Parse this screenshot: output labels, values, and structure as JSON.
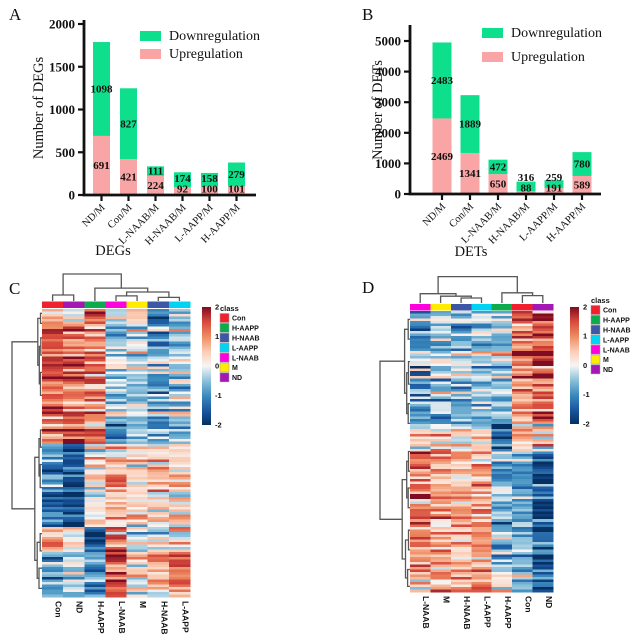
{
  "figure": {
    "background": "#FFFFFF"
  },
  "chart_data": [
    {
      "id": "A",
      "type": "bar",
      "stacked": true,
      "panel_label": "A",
      "categories": [
        "ND/M",
        "Con/M",
        "L-NAAB/M",
        "H-NAAB/M",
        "L-AAPP/M",
        "H-AAPP/M"
      ],
      "series": [
        {
          "name": "Downregulation",
          "color": "#0EDF8C",
          "values": [
            1098,
            827,
            111,
            174,
            158,
            279
          ]
        },
        {
          "name": "Upregulation",
          "color": "#F9A5A5",
          "values": [
            691,
            421,
            224,
            92,
            100,
            101
          ]
        }
      ],
      "legend": [
        "Downregulation",
        "Upregulation"
      ],
      "ylabel": "Number of DEGs",
      "xlabel": "DEGs",
      "ylim": [
        0,
        2000
      ],
      "yticks": [
        0,
        500,
        1000,
        1500,
        2000
      ]
    },
    {
      "id": "B",
      "type": "bar",
      "stacked": true,
      "panel_label": "B",
      "categories": [
        "ND/M",
        "Con/M",
        "L-NAAB/M",
        "H-NAAB/M",
        "L-AAPP/M",
        "H-AAPP/M"
      ],
      "series": [
        {
          "name": "Downregulation",
          "color": "#0EDF8C",
          "values": [
            2483,
            1889,
            472,
            316,
            259,
            780
          ]
        },
        {
          "name": "Upregulation",
          "color": "#F9A5A5",
          "values": [
            2469,
            1341,
            650,
            88,
            191,
            589
          ]
        }
      ],
      "legend": [
        "Downregulation",
        "Upregulation"
      ],
      "ylabel": "Number of DETs",
      "xlabel": "DETs",
      "ylim": [
        0,
        5000
      ],
      "yticks": [
        0,
        1000,
        2000,
        3000,
        4000,
        5000
      ]
    },
    {
      "id": "C",
      "type": "heatmap",
      "panel_label": "C",
      "columns": [
        "Con",
        "ND",
        "H-AAPP",
        "L-NAAB",
        "M",
        "H-NAAB",
        "L-AAPP"
      ],
      "legend_title": "class",
      "classes": [
        {
          "name": "Con",
          "color": "#F0202E"
        },
        {
          "name": "H-AAPP",
          "color": "#0CAC4E"
        },
        {
          "name": "H-NAAB",
          "color": "#3D56A6"
        },
        {
          "name": "L-AAPP",
          "color": "#00D3F4"
        },
        {
          "name": "L-NAAB",
          "color": "#FF00DE"
        },
        {
          "name": "M",
          "color": "#FFEC00"
        },
        {
          "name": "ND",
          "color": "#A517B2"
        }
      ],
      "colorbar_ticks": [
        2,
        1,
        0,
        -1,
        -2
      ],
      "value_range": [
        -2,
        2
      ],
      "n_rows": 115,
      "noise": {
        "seed": 20231,
        "row": 0.32,
        "cell": 0.45
      },
      "row_blocks": [
        {
          "until": 0.05,
          "means": [
            0.4,
            0.1,
            1.3,
            -0.2,
            0.6,
            -1.4,
            -0.7
          ]
        },
        {
          "until": 0.4,
          "means": [
            1.25,
            1.15,
            0.85,
            -0.55,
            -0.35,
            -0.75,
            -0.45
          ]
        },
        {
          "until": 0.47,
          "means": [
            1.0,
            1.6,
            1.2,
            -1.0,
            -0.7,
            -0.9,
            -0.8
          ]
        },
        {
          "until": 0.76,
          "means": [
            -1.05,
            -1.5,
            0.25,
            0.75,
            0.5,
            0.45,
            0.6
          ]
        },
        {
          "until": 0.84,
          "means": [
            0.7,
            0.2,
            -1.6,
            1.1,
            -0.5,
            -0.2,
            0.35
          ]
        },
        {
          "until": 1.0,
          "means": [
            -0.75,
            -0.35,
            -0.9,
            1.25,
            0.45,
            0.5,
            1.0
          ]
        }
      ],
      "col_dendrogram": {
        "h": 0.9,
        "c": [
          {
            "h": 0.2,
            "c": [
              {
                "leaf": 0
              },
              {
                "leaf": 1
              }
            ]
          },
          {
            "h": 0.43,
            "c": [
              {
                "leaf": 2
              },
              {
                "h": 0.3,
                "c": [
                  {
                    "h": 0.17,
                    "c": [
                      {
                        "leaf": 3
                      },
                      {
                        "leaf": 4
                      }
                    ]
                  },
                  {
                    "h": 0.12,
                    "c": [
                      {
                        "leaf": 5
                      },
                      {
                        "leaf": 6
                      }
                    ]
                  }
                ]
              }
            ]
          }
        ]
      },
      "row_dendrogram": {
        "h": 1.0,
        "c": [
          {
            "h": 0.14,
            "c": [
              {
                "h": 0.05,
                "c": [
                  {
                    "at": 0.015
                  },
                  {
                    "at": 0.05
                  }
                ]
              },
              {
                "h": 0.09,
                "c": [
                  {
                    "h": 0.04,
                    "c": [
                      {
                        "at": 0.1
                      },
                      {
                        "at": 0.16
                      }
                    ]
                  },
                  {
                    "h": 0.05,
                    "c": [
                      {
                        "at": 0.22
                      },
                      {
                        "at": 0.3
                      }
                    ]
                  }
                ]
              }
            ]
          },
          {
            "h": 0.24,
            "c": [
              {
                "h": 0.1,
                "c": [
                  {
                    "h": 0.05,
                    "c": [
                      {
                        "at": 0.42
                      },
                      {
                        "at": 0.48
                      }
                    ]
                  },
                  {
                    "h": 0.06,
                    "c": [
                      {
                        "at": 0.54
                      },
                      {
                        "at": 0.62
                      }
                    ]
                  }
                ]
              },
              {
                "h": 0.16,
                "c": [
                  {
                    "h": 0.06,
                    "c": [
                      {
                        "at": 0.78
                      },
                      {
                        "at": 0.84
                      }
                    ]
                  },
                  {
                    "h": 0.1,
                    "c": [
                      {
                        "at": 0.9
                      },
                      {
                        "at": 0.97
                      }
                    ]
                  }
                ]
              }
            ]
          }
        ]
      }
    },
    {
      "id": "D",
      "type": "heatmap",
      "panel_label": "D",
      "columns": [
        "L-NAAB",
        "M",
        "H-NAAB",
        "L-AAPP",
        "H-AAPP",
        "Con",
        "ND"
      ],
      "legend_title": "class",
      "classes": [
        {
          "name": "Con",
          "color": "#F0202E"
        },
        {
          "name": "H-AAPP",
          "color": "#0CAC4E"
        },
        {
          "name": "H-NAAB",
          "color": "#3D56A6"
        },
        {
          "name": "L-AAPP",
          "color": "#00D3F4"
        },
        {
          "name": "L-NAAB",
          "color": "#FF00DE"
        },
        {
          "name": "M",
          "color": "#FFEC00"
        },
        {
          "name": "ND",
          "color": "#A517B2"
        }
      ],
      "colorbar_ticks": [
        2,
        1,
        0,
        -1,
        -2
      ],
      "value_range": [
        -2,
        2
      ],
      "n_rows": 112,
      "noise": {
        "seed": 777,
        "row": 0.32,
        "cell": 0.45
      },
      "row_blocks": [
        {
          "until": 0.4,
          "means": [
            -0.85,
            -0.5,
            -0.55,
            -0.4,
            -0.45,
            1.05,
            1.5
          ]
        },
        {
          "until": 0.5,
          "means": [
            0.55,
            0.3,
            0.25,
            0.45,
            -1.35,
            0.9,
            0.55
          ]
        },
        {
          "until": 0.93,
          "means": [
            1.1,
            0.7,
            0.8,
            0.8,
            -0.5,
            -0.7,
            -1.5
          ]
        },
        {
          "until": 1.0,
          "means": [
            0.9,
            0.8,
            0.6,
            1.0,
            0.3,
            -0.4,
            -1.2
          ]
        }
      ],
      "col_dendrogram": {
        "h": 0.85,
        "c": [
          {
            "h": 0.3,
            "c": [
              {
                "leaf": 0
              },
              {
                "h": 0.22,
                "c": [
                  {
                    "leaf": 1
                  },
                  {
                    "h": 0.16,
                    "c": [
                      {
                        "leaf": 2
                      },
                      {
                        "leaf": 3
                      }
                    ]
                  }
                ]
              }
            ]
          },
          {
            "h": 0.33,
            "c": [
              {
                "leaf": 4
              },
              {
                "h": 0.24,
                "c": [
                  {
                    "leaf": 5
                  },
                  {
                    "leaf": 6
                  }
                ]
              }
            ]
          }
        ]
      },
      "row_dendrogram": {
        "h": 1.0,
        "c": [
          {
            "h": 0.18,
            "c": [
              {
                "h": 0.06,
                "c": [
                  {
                    "at": 0.03
                  },
                  {
                    "at": 0.1
                  }
                ]
              },
              {
                "h": 0.11,
                "c": [
                  {
                    "h": 0.05,
                    "c": [
                      {
                        "at": 0.18
                      },
                      {
                        "at": 0.26
                      }
                    ]
                  },
                  {
                    "h": 0.06,
                    "c": [
                      {
                        "at": 0.33
                      },
                      {
                        "at": 0.4
                      }
                    ]
                  }
                ]
              }
            ]
          },
          {
            "h": 0.26,
            "c": [
              {
                "h": 0.11,
                "c": [
                  {
                    "h": 0.05,
                    "c": [
                      {
                        "at": 0.5
                      },
                      {
                        "at": 0.57
                      }
                    ]
                  },
                  {
                    "h": 0.06,
                    "c": [
                      {
                        "at": 0.63
                      },
                      {
                        "at": 0.7
                      }
                    ]
                  }
                ]
              },
              {
                "h": 0.15,
                "c": [
                  {
                    "h": 0.05,
                    "c": [
                      {
                        "at": 0.78
                      },
                      {
                        "at": 0.85
                      }
                    ]
                  },
                  {
                    "h": 0.08,
                    "c": [
                      {
                        "at": 0.92
                      },
                      {
                        "at": 0.98
                      }
                    ]
                  }
                ]
              }
            ]
          }
        ]
      }
    }
  ]
}
